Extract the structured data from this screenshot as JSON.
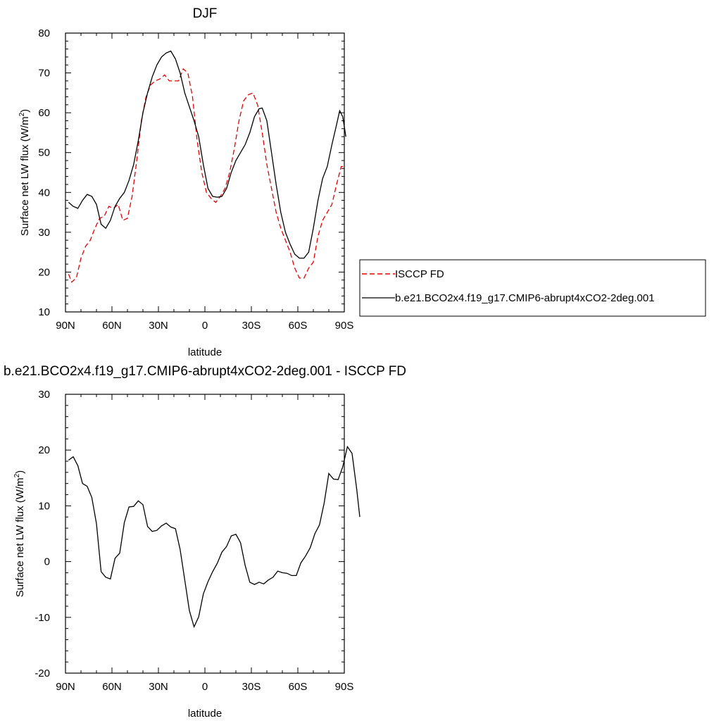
{
  "chart_data": [
    {
      "type": "line",
      "title": "DJF",
      "xlabel": "latitude",
      "ylabel": "Surface net LW flux (W/m",
      "ylabel_sup": "2",
      "ylabel_close": ")",
      "xlim": [
        90,
        -90
      ],
      "ylim": [
        10,
        80
      ],
      "xticks": [
        90,
        60,
        30,
        0,
        -30,
        -60,
        -90
      ],
      "xtick_labels": [
        "90N",
        "60N",
        "30N",
        "0",
        "30S",
        "60S",
        "90S"
      ],
      "yticks": [
        10,
        20,
        30,
        40,
        50,
        60,
        70,
        80
      ],
      "ytick_labels": [
        "10",
        "20",
        "30",
        "40",
        "50",
        "60",
        "70",
        "80"
      ],
      "legend_position": "outside-right",
      "series": [
        {
          "name": "ISCCP FD",
          "color": "#e60000",
          "dash": true,
          "points": [
            [
              88,
              19.5
            ],
            [
              86,
              17.5
            ],
            [
              83,
              18.5
            ],
            [
              80,
              23.5
            ],
            [
              77,
              26.5
            ],
            [
              74,
              28
            ],
            [
              71,
              31
            ],
            [
              68,
              33.5
            ],
            [
              65,
              34
            ],
            [
              62,
              36.5
            ],
            [
              59,
              36
            ],
            [
              56,
              37
            ],
            [
              53,
              33
            ],
            [
              50,
              33.5
            ],
            [
              47,
              39
            ],
            [
              44,
              48
            ],
            [
              41,
              58
            ],
            [
              38,
              64
            ],
            [
              35,
              67
            ],
            [
              32,
              68
            ],
            [
              29,
              68.5
            ],
            [
              26,
              69.5
            ],
            [
              23,
              68
            ],
            [
              20,
              68
            ],
            [
              17,
              68
            ],
            [
              14,
              71
            ],
            [
              11,
              70
            ],
            [
              8,
              64
            ],
            [
              5,
              53
            ],
            [
              2,
              45
            ],
            [
              -1,
              40
            ],
            [
              -4,
              38.5
            ],
            [
              -7,
              37.5
            ],
            [
              -10,
              39
            ],
            [
              -13,
              41
            ],
            [
              -16,
              45
            ],
            [
              -19,
              51
            ],
            [
              -22,
              58
            ],
            [
              -25,
              63
            ],
            [
              -28,
              64.5
            ],
            [
              -31,
              65
            ],
            [
              -34,
              62
            ],
            [
              -37,
              55
            ],
            [
              -40,
              47
            ],
            [
              -43,
              41
            ],
            [
              -46,
              35
            ],
            [
              -49,
              31
            ],
            [
              -52,
              28
            ],
            [
              -55,
              25
            ],
            [
              -58,
              21
            ],
            [
              -61,
              18.5
            ],
            [
              -64,
              18.5
            ],
            [
              -67,
              21
            ],
            [
              -70,
              22.5
            ],
            [
              -73,
              29
            ],
            [
              -76,
              33
            ],
            [
              -79,
              35
            ],
            [
              -82,
              37
            ],
            [
              -85,
              42
            ],
            [
              -88,
              46.5
            ],
            [
              -90,
              46.5
            ]
          ]
        },
        {
          "name": "b.e21.BCO2x4.f19_g17.CMIP6-abrupt4xCO2-2deg.001",
          "color": "#000000",
          "dash": false,
          "points": [
            [
              88,
              37.5
            ],
            [
              85,
              36.5
            ],
            [
              82,
              36
            ],
            [
              79,
              38
            ],
            [
              76,
              39.5
            ],
            [
              73,
              39
            ],
            [
              70,
              37
            ],
            [
              67,
              32
            ],
            [
              64,
              31
            ],
            [
              61,
              33
            ],
            [
              58,
              36.5
            ],
            [
              55,
              38.5
            ],
            [
              52,
              40
            ],
            [
              49,
              43
            ],
            [
              46,
              47
            ],
            [
              43,
              53
            ],
            [
              40,
              60
            ],
            [
              37,
              65
            ],
            [
              34,
              69
            ],
            [
              31,
              72
            ],
            [
              28,
              74
            ],
            [
              25,
              75
            ],
            [
              22,
              75.5
            ],
            [
              19,
              73.5
            ],
            [
              16,
              70
            ],
            [
              13,
              65
            ],
            [
              10,
              61.5
            ],
            [
              7,
              58
            ],
            [
              4,
              54
            ],
            [
              1,
              47
            ],
            [
              -2,
              41
            ],
            [
              -5,
              39
            ],
            [
              -8,
              38.8
            ],
            [
              -11,
              39
            ],
            [
              -14,
              41
            ],
            [
              -17,
              45
            ],
            [
              -20,
              48
            ],
            [
              -23,
              50
            ],
            [
              -26,
              52
            ],
            [
              -29,
              55
            ],
            [
              -32,
              59
            ],
            [
              -35,
              61
            ],
            [
              -37,
              61.2
            ],
            [
              -40,
              58
            ],
            [
              -43,
              50
            ],
            [
              -46,
              42
            ],
            [
              -49,
              35
            ],
            [
              -52,
              30
            ],
            [
              -55,
              27
            ],
            [
              -58,
              24.5
            ],
            [
              -61,
              23.5
            ],
            [
              -64,
              23.5
            ],
            [
              -67,
              25
            ],
            [
              -70,
              31
            ],
            [
              -73,
              38
            ],
            [
              -76,
              43.5
            ],
            [
              -79,
              46.5
            ],
            [
              -82,
              52
            ],
            [
              -85,
              57
            ],
            [
              -87,
              60.5
            ],
            [
              -89,
              59
            ],
            [
              -91,
              54
            ]
          ]
        }
      ]
    },
    {
      "type": "line",
      "title": "b.e21.BCO2x4.f19_g17.CMIP6-abrupt4xCO2-2deg.001 - ISCCP FD",
      "xlabel": "latitude",
      "ylabel": "Surface net LW flux (W/m",
      "ylabel_sup": "2",
      "ylabel_close": ")",
      "xlim": [
        90,
        -90
      ],
      "ylim": [
        -20,
        30
      ],
      "xticks": [
        90,
        60,
        30,
        0,
        -30,
        -60,
        -90
      ],
      "xtick_labels": [
        "90N",
        "60N",
        "30N",
        "0",
        "30S",
        "60S",
        "90S"
      ],
      "yticks": [
        -20,
        -10,
        0,
        10,
        20,
        30
      ],
      "ytick_labels": [
        "-20",
        "-10",
        "0",
        "10",
        "20",
        "30"
      ],
      "series": [
        {
          "color": "#000000",
          "dash": false,
          "points": [
            [
              88,
              18.2
            ],
            [
              85,
              18.8
            ],
            [
              82,
              17.2
            ],
            [
              79,
              14
            ],
            [
              76,
              13.5
            ],
            [
              73,
              11.5
            ],
            [
              70,
              6.8
            ],
            [
              67,
              -1.8
            ],
            [
              64,
              -2.8
            ],
            [
              61,
              -3.1
            ],
            [
              58,
              0.6
            ],
            [
              55,
              1.5
            ],
            [
              52,
              7
            ],
            [
              49,
              9.8
            ],
            [
              46,
              9.9
            ],
            [
              43,
              10.9
            ],
            [
              40,
              10.2
            ],
            [
              37,
              6.3
            ],
            [
              34,
              5.4
            ],
            [
              31,
              5.6
            ],
            [
              28,
              6.4
            ],
            [
              25,
              6.9
            ],
            [
              22,
              6.2
            ],
            [
              19,
              5.9
            ],
            [
              16,
              2.2
            ],
            [
              13,
              -3.3
            ],
            [
              10,
              -8.8
            ],
            [
              7,
              -11.7
            ],
            [
              4,
              -9.9
            ],
            [
              1,
              -5.8
            ],
            [
              -2,
              -3.6
            ],
            [
              -5,
              -1.8
            ],
            [
              -8,
              -0.3
            ],
            [
              -11,
              1.7
            ],
            [
              -14,
              2.7
            ],
            [
              -17,
              4.6
            ],
            [
              -20,
              4.9
            ],
            [
              -23,
              3.4
            ],
            [
              -26,
              -0.7
            ],
            [
              -29,
              -3.7
            ],
            [
              -32,
              -4.1
            ],
            [
              -35,
              -3.7
            ],
            [
              -38,
              -4
            ],
            [
              -41,
              -3.3
            ],
            [
              -44,
              -2.8
            ],
            [
              -47,
              -1.7
            ],
            [
              -50,
              -2
            ],
            [
              -53,
              -2.1
            ],
            [
              -56,
              -2.5
            ],
            [
              -59,
              -2.5
            ],
            [
              -62,
              -0.2
            ],
            [
              -65,
              1
            ],
            [
              -68,
              2.5
            ],
            [
              -71,
              5
            ],
            [
              -74,
              6.6
            ],
            [
              -77,
              10.5
            ],
            [
              -80,
              15.8
            ],
            [
              -83,
              14.8
            ],
            [
              -86,
              14.7
            ],
            [
              -89,
              17
            ],
            [
              -92,
              20.6
            ],
            [
              -95,
              19.4
            ],
            [
              -98,
              13
            ],
            [
              -100,
              8
            ]
          ]
        }
      ]
    }
  ]
}
